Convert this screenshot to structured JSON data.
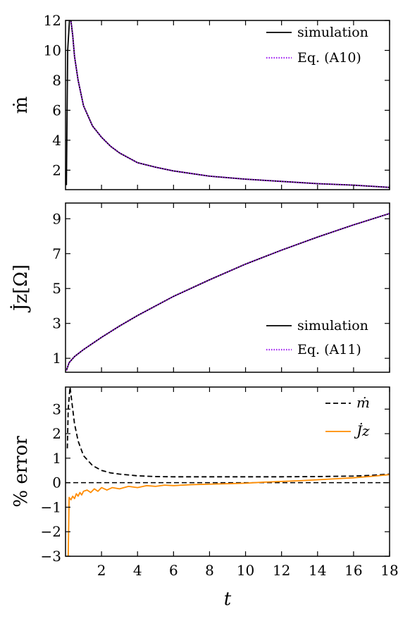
{
  "chart_data": [
    {
      "type": "line",
      "ylabel": "ṁ",
      "xlim": [
        0,
        18
      ],
      "ylim": [
        0.7,
        12
      ],
      "yticks": [
        2,
        4,
        6,
        8,
        10,
        12
      ],
      "legend": {
        "position": "top-right",
        "entries": [
          "simulation",
          "Eq. (A10)"
        ]
      },
      "series": [
        {
          "name": "simulation",
          "color": "#000000",
          "style": "solid",
          "x": [
            0.05,
            0.12,
            0.22,
            0.3,
            0.4,
            0.5,
            0.7,
            1.0,
            1.5,
            2.0,
            2.5,
            3.0,
            4.0,
            5.0,
            6.0,
            8.0,
            10.0,
            12.0,
            14.0,
            16.0,
            18.0
          ],
          "y": [
            1.0,
            10.0,
            12.0,
            12.0,
            11.0,
            9.6,
            8.0,
            6.3,
            4.95,
            4.2,
            3.6,
            3.15,
            2.5,
            2.2,
            1.95,
            1.6,
            1.4,
            1.25,
            1.1,
            1.0,
            0.85
          ]
        },
        {
          "name": "Eq. (A10)",
          "color": "#a020f0",
          "style": "dotted",
          "x": [
            0.25,
            0.3,
            0.4,
            0.5,
            0.7,
            1.0,
            1.5,
            2.0,
            2.5,
            3.0,
            4.0,
            5.0,
            6.0,
            8.0,
            10.0,
            12.0,
            14.0,
            16.0,
            18.0
          ],
          "y": [
            12.0,
            12.0,
            11.0,
            9.6,
            8.0,
            6.3,
            4.95,
            4.2,
            3.6,
            3.15,
            2.5,
            2.2,
            1.95,
            1.6,
            1.4,
            1.25,
            1.1,
            1.0,
            0.85
          ]
        }
      ]
    },
    {
      "type": "line",
      "ylabel": "J̇z[Ω]",
      "xlim": [
        0,
        18
      ],
      "ylim": [
        0.2,
        9.9
      ],
      "yticks": [
        1,
        3,
        5,
        7,
        9
      ],
      "legend": {
        "position": "bottom-right",
        "entries": [
          "simulation",
          "Eq. (A11)"
        ]
      },
      "series": [
        {
          "name": "simulation",
          "color": "#000000",
          "style": "solid",
          "x": [
            0.05,
            0.2,
            0.5,
            1,
            2,
            3,
            4,
            5,
            6,
            8,
            10,
            12,
            14,
            16,
            18
          ],
          "y": [
            0.3,
            0.75,
            1.1,
            1.5,
            2.2,
            2.85,
            3.45,
            4.0,
            4.55,
            5.5,
            6.4,
            7.2,
            7.95,
            8.65,
            9.3
          ]
        },
        {
          "name": "Eq. (A11)",
          "color": "#a020f0",
          "style": "dotted",
          "x": [
            0.05,
            0.2,
            0.5,
            1,
            2,
            3,
            4,
            5,
            6,
            8,
            10,
            12,
            14,
            16,
            18
          ],
          "y": [
            0.3,
            0.75,
            1.1,
            1.5,
            2.2,
            2.85,
            3.45,
            4.0,
            4.55,
            5.5,
            6.4,
            7.2,
            7.95,
            8.65,
            9.3
          ]
        }
      ]
    },
    {
      "type": "line",
      "ylabel": "% error",
      "xlabel": "t",
      "xlim": [
        0,
        18
      ],
      "ylim": [
        -3,
        3.9
      ],
      "yticks": [
        -3,
        -2,
        -1,
        0,
        1,
        2,
        3
      ],
      "xticks": [
        2,
        4,
        6,
        8,
        10,
        12,
        14,
        16,
        18
      ],
      "legend": {
        "position": "top-right",
        "entries": [
          "ṁ",
          "J̇z"
        ]
      },
      "reference_line": {
        "y": 0,
        "color": "#000000",
        "style": "dashed"
      },
      "series": [
        {
          "name": "ṁ",
          "color": "#000000",
          "style": "dashed",
          "x": [
            0.1,
            0.15,
            0.25,
            0.35,
            0.5,
            0.7,
            1.0,
            1.5,
            2.0,
            2.5,
            3.0,
            4.0,
            5.0,
            6.0,
            8.0,
            10.0,
            12.0,
            14.0,
            16.0,
            17.0,
            18.0
          ],
          "y": [
            1.4,
            3.0,
            3.9,
            3.3,
            2.4,
            1.7,
            1.1,
            0.7,
            0.5,
            0.4,
            0.35,
            0.28,
            0.25,
            0.24,
            0.24,
            0.24,
            0.24,
            0.25,
            0.27,
            0.3,
            0.35
          ]
        },
        {
          "name": "J̇z",
          "color": "#ff8c00",
          "style": "solid",
          "x": [
            0.08,
            0.15,
            0.2,
            0.3,
            0.4,
            0.5,
            0.6,
            0.7,
            0.8,
            0.9,
            1.0,
            1.2,
            1.4,
            1.6,
            1.8,
            2.0,
            2.3,
            2.6,
            3.0,
            3.5,
            4.0,
            4.5,
            5.0,
            5.5,
            6.0,
            7.0,
            8.0,
            9.0,
            10.0,
            11.0,
            12.0,
            13.0,
            14.0,
            15.0,
            16.0,
            17.0,
            18.0
          ],
          "y": [
            -3.0,
            -3.0,
            -0.6,
            -0.7,
            -0.55,
            -0.65,
            -0.45,
            -0.55,
            -0.4,
            -0.5,
            -0.35,
            -0.3,
            -0.4,
            -0.25,
            -0.35,
            -0.2,
            -0.3,
            -0.2,
            -0.25,
            -0.15,
            -0.2,
            -0.12,
            -0.15,
            -0.1,
            -0.12,
            -0.08,
            -0.06,
            -0.04,
            -0.02,
            0.02,
            0.05,
            0.08,
            0.12,
            0.16,
            0.2,
            0.26,
            0.33
          ]
        }
      ]
    }
  ]
}
